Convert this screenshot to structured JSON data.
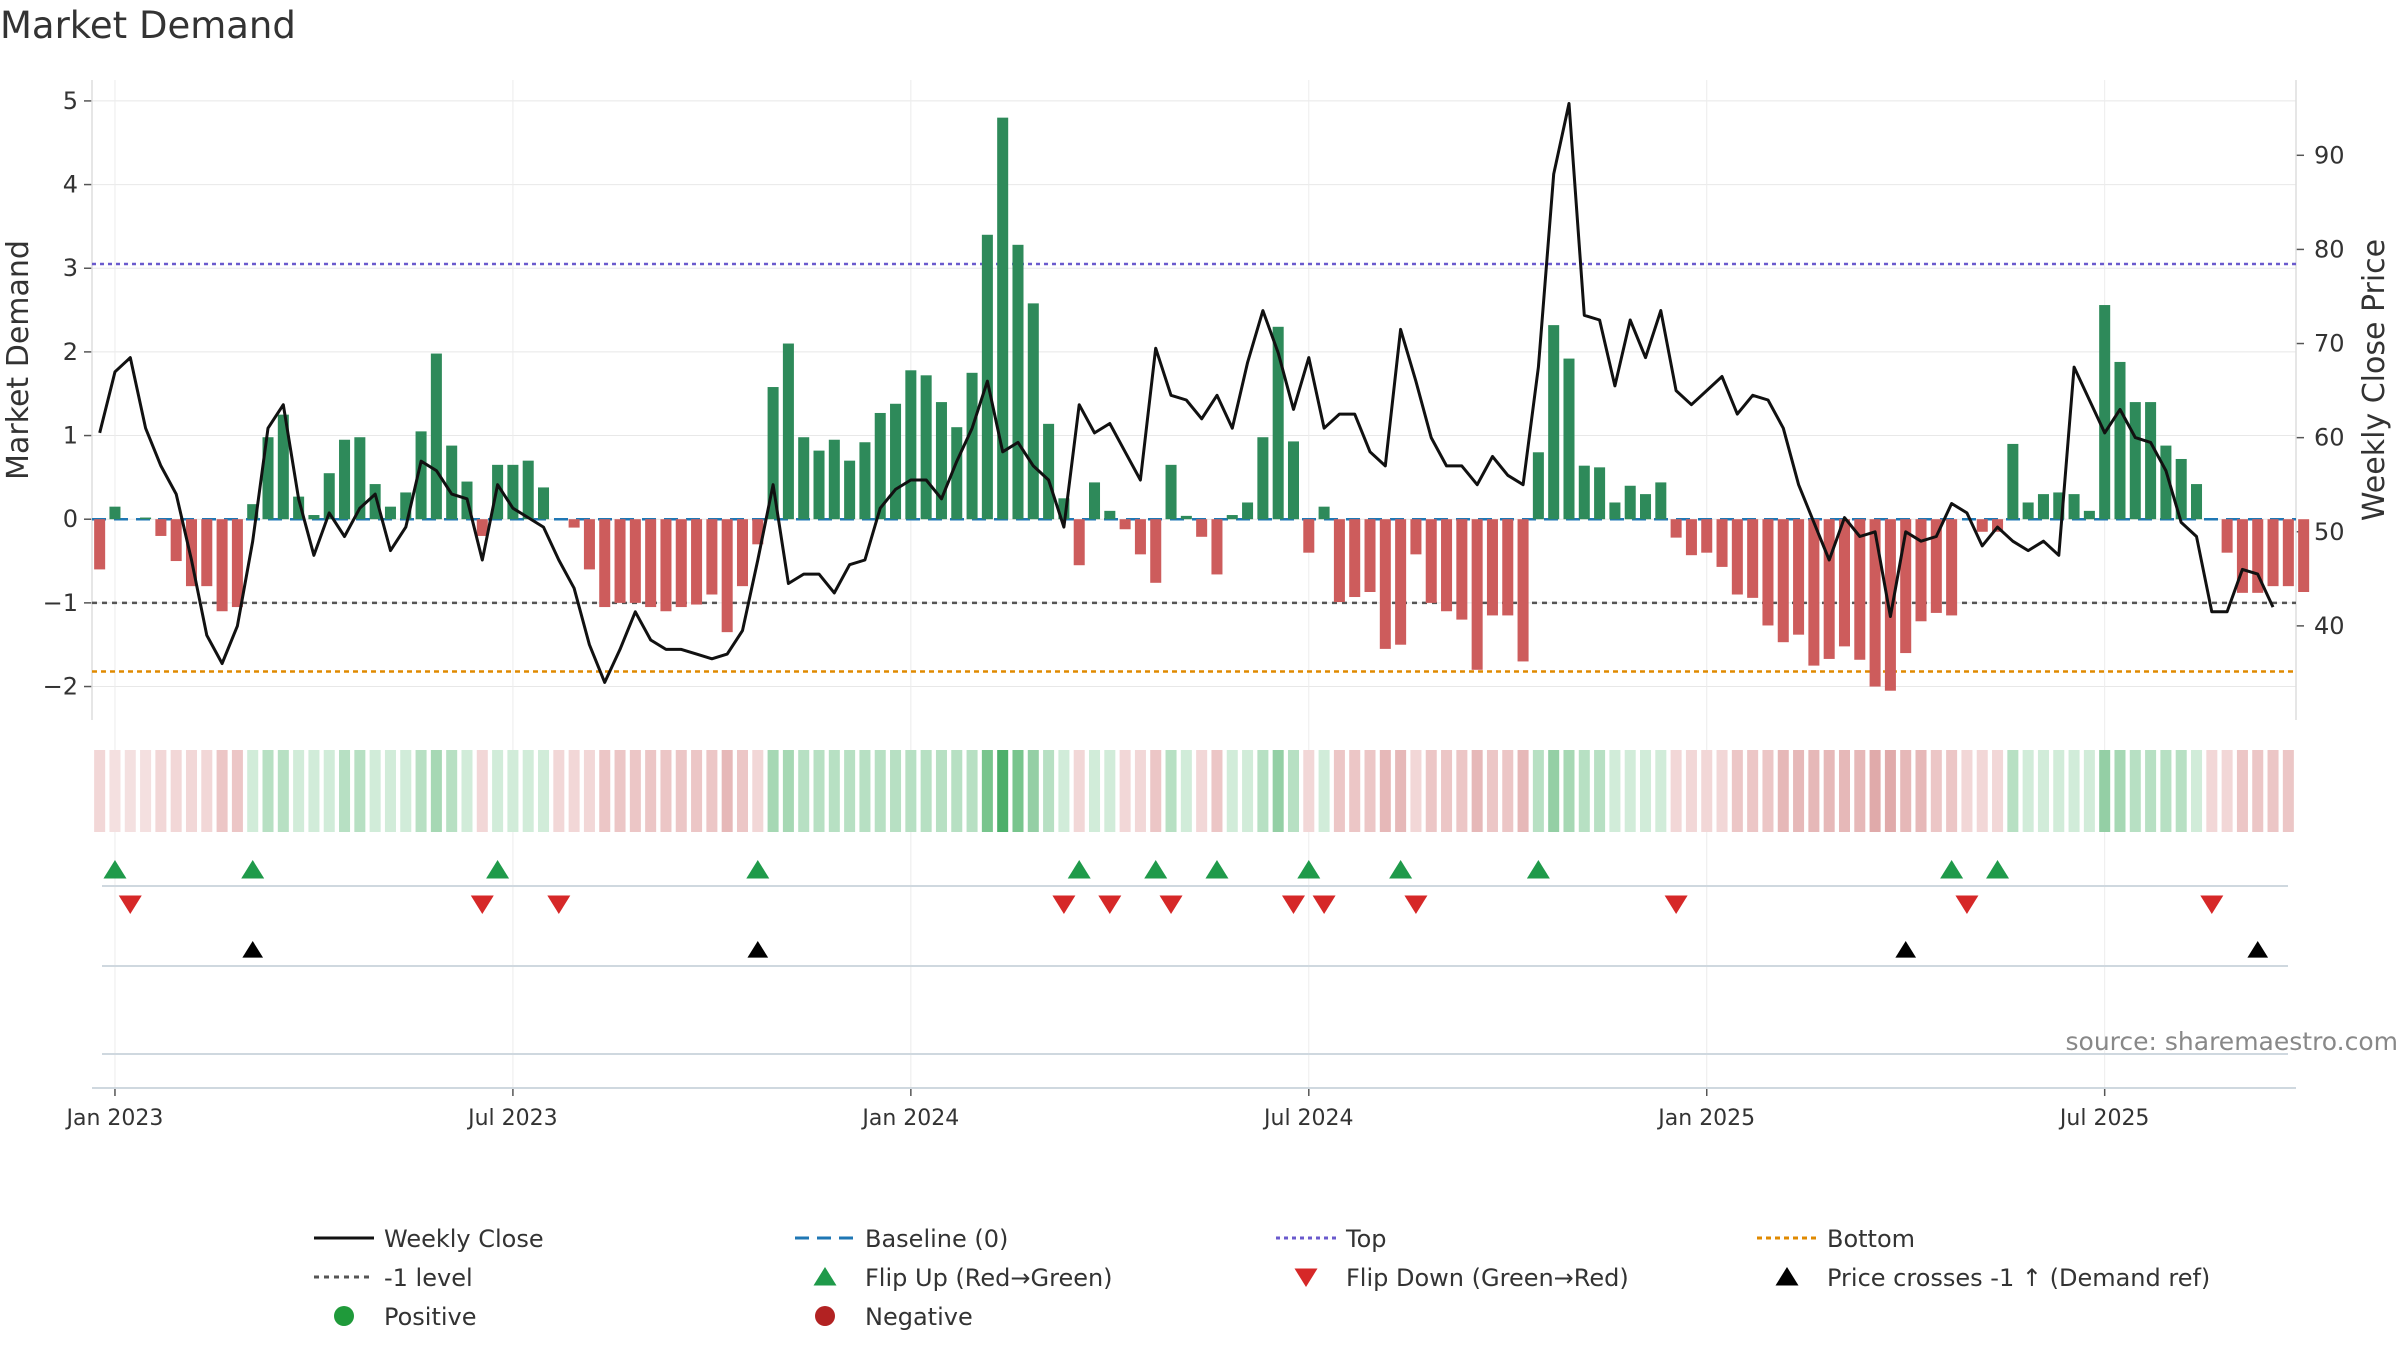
{
  "chart_data": {
    "type": "bar+line",
    "title": "Market Demand",
    "ylabel_left": "Market Demand",
    "ylabel_right": "Weekly Close Price",
    "left_ylim": [
      -2.4,
      5.25
    ],
    "right_ylim": [
      30,
      98
    ],
    "left_yticks": [
      -2,
      -1,
      0,
      1,
      2,
      3,
      4,
      5
    ],
    "left_ytick_labels": [
      "−2",
      "−1",
      "0",
      "1",
      "2",
      "3",
      "4",
      "5"
    ],
    "right_yticks": [
      40,
      50,
      60,
      70,
      80,
      90
    ],
    "right_ytick_labels": [
      "40",
      "50",
      "60",
      "70",
      "80",
      "90"
    ],
    "x_ticks": [
      {
        "index": 1,
        "label": "Jan 2023"
      },
      {
        "index": 27,
        "label": "Jul 2023"
      },
      {
        "index": 53,
        "label": "Jan 2024"
      },
      {
        "index": 79,
        "label": "Jul 2024"
      },
      {
        "index": 105,
        "label": "Jan 2025"
      },
      {
        "index": 131,
        "label": "Jul 2025"
      }
    ],
    "n_weeks": 144,
    "top_level": 3.05,
    "bottom_level": -1.82,
    "minus1_level": -1,
    "demand": [
      -0.6,
      0.15,
      0,
      0.02,
      -0.2,
      -0.5,
      -0.8,
      -0.8,
      -1.1,
      -1.05,
      0.18,
      0.98,
      1.25,
      0.27,
      0.05,
      0.55,
      0.95,
      0.98,
      0.42,
      0.15,
      0.32,
      1.05,
      1.98,
      0.88,
      0.45,
      -0.2,
      0.65,
      0.65,
      0.7,
      0.38,
      0,
      -0.1,
      -0.6,
      -1.05,
      -1,
      -1,
      -1.05,
      -1.1,
      -1.05,
      -1.02,
      -0.9,
      -1.35,
      -0.8,
      -0.3,
      1.58,
      2.1,
      0.98,
      0.82,
      0.95,
      0.7,
      0.92,
      1.27,
      1.38,
      1.78,
      1.72,
      1.4,
      1.1,
      1.75,
      3.4,
      4.8,
      3.28,
      2.58,
      1.14,
      0.25,
      -0.55,
      0.44,
      0.1,
      -0.12,
      -0.42,
      -0.76,
      0.65,
      0.04,
      -0.21,
      -0.66,
      0.05,
      0.2,
      0.98,
      2.3,
      0.93,
      -0.4,
      0.15,
      -0.99,
      -0.93,
      -0.87,
      -1.55,
      -1.5,
      -0.42,
      -1.0,
      -1.1,
      -1.2,
      -1.8,
      -1.15,
      -1.15,
      -1.7,
      0.8,
      2.32,
      1.92,
      0.64,
      0.62,
      0.2,
      0.4,
      0.3,
      0.44,
      -0.22,
      -0.43,
      -0.4,
      -0.57,
      -0.9,
      -0.94,
      -1.27,
      -1.47,
      -1.38,
      -1.75,
      -1.67,
      -1.52,
      -1.68,
      -2.0,
      -2.05,
      -1.6,
      -1.22,
      -1.12,
      -1.15,
      0,
      -0.15,
      -0.15,
      0.9,
      0.2,
      0.3,
      0.32,
      0.3,
      0.1,
      2.56,
      1.88,
      1.4,
      1.4,
      0.88,
      0.72,
      0.42,
      0,
      -0.4,
      -0.88,
      -0.88,
      -0.8,
      -0.8,
      -0.87
    ],
    "weekly_close": [
      60.5,
      67,
      68.5,
      61,
      57,
      54,
      47,
      39,
      36,
      40,
      49,
      61,
      63.5,
      53.5,
      47.5,
      52,
      49.5,
      52.5,
      54,
      48,
      50.5,
      57.5,
      56.5,
      54,
      53.5,
      47,
      55,
      52.5,
      51.5,
      50.5,
      47,
      44,
      38,
      34,
      37.5,
      41.5,
      38.5,
      37.5,
      37.5,
      37,
      36.5,
      37,
      39.5,
      47,
      55,
      44.5,
      45.5,
      45.5,
      43.5,
      46.5,
      47,
      52.5,
      54.5,
      55.5,
      55.5,
      53.5,
      57.5,
      61,
      66,
      58.5,
      59.5,
      57,
      55.5,
      50.5,
      63.5,
      60.5,
      61.5,
      58.5,
      55.5,
      69.5,
      64.5,
      64,
      62,
      64.5,
      61,
      68,
      73.5,
      69,
      63,
      68.5,
      61,
      62.5,
      62.5,
      58.5,
      57,
      71.5,
      66,
      60,
      57,
      57,
      55,
      58,
      56,
      55,
      67.5,
      88,
      95.5,
      73,
      72.5,
      65.5,
      72.5,
      68.5,
      73.5,
      65,
      63.5,
      65,
      66.5,
      62.5,
      64.5,
      64,
      61,
      55,
      51,
      47,
      51.5,
      49.5,
      50,
      41,
      50,
      49,
      49.5,
      53,
      52,
      48.5,
      50.5,
      49,
      48,
      49,
      47.5,
      67.5,
      64,
      60.5,
      63,
      60,
      59.5,
      56.5,
      51,
      49.5,
      41.5,
      41.5,
      46,
      45.5,
      42
    ],
    "strip_colors": [
      "#f2d7d7",
      "#f4e0e0",
      "#f4e0e0",
      "#f4e0e0",
      "#f2d7d7",
      "#f2d7d7",
      "#f2d7d7",
      "#f2d7d7",
      "#ecc6c6",
      "#ecc6c6",
      "#d1ecd9",
      "#b7e0c3",
      "#b7e0c3",
      "#d1ecd9",
      "#d1ecd9",
      "#d1ecd9",
      "#b7e0c3",
      "#b7e0c3",
      "#d1ecd9",
      "#d1ecd9",
      "#d1ecd9",
      "#b7e0c3",
      "#a6d8b4",
      "#b7e0c3",
      "#d1ecd9",
      "#f2d7d7",
      "#d1ecd9",
      "#d1ecd9",
      "#d1ecd9",
      "#d1ecd9",
      "#f2d7d7",
      "#f2d7d7",
      "#f2d7d7",
      "#ecc6c6",
      "#ecc6c6",
      "#ecc6c6",
      "#ecc6c6",
      "#ecc6c6",
      "#ecc6c6",
      "#ecc6c6",
      "#ecc6c6",
      "#e6b8b8",
      "#ecc6c6",
      "#f2d7d7",
      "#a6d8b4",
      "#a6d8b4",
      "#b7e0c3",
      "#b7e0c3",
      "#b7e0c3",
      "#b7e0c3",
      "#b7e0c3",
      "#b7e0c3",
      "#b7e0c3",
      "#b7e0c3",
      "#b7e0c3",
      "#b7e0c3",
      "#b7e0c3",
      "#b7e0c3",
      "#78c58d",
      "#4caf6a",
      "#78c58d",
      "#94cfa5",
      "#b7e0c3",
      "#d1ecd9",
      "#f2d7d7",
      "#d1ecd9",
      "#d1ecd9",
      "#f2d7d7",
      "#f2d7d7",
      "#ecc6c6",
      "#b7e0c3",
      "#d1ecd9",
      "#f2d7d7",
      "#ecc6c6",
      "#d1ecd9",
      "#d1ecd9",
      "#b7e0c3",
      "#94cfa5",
      "#b7e0c3",
      "#f2d7d7",
      "#d1ecd9",
      "#ecc6c6",
      "#ecc6c6",
      "#ecc6c6",
      "#e6b8b8",
      "#e6b8b8",
      "#f2d7d7",
      "#ecc6c6",
      "#ecc6c6",
      "#ecc6c6",
      "#e6b8b8",
      "#ecc6c6",
      "#ecc6c6",
      "#e6b8b8",
      "#b7e0c3",
      "#94cfa5",
      "#a6d8b4",
      "#b7e0c3",
      "#b7e0c3",
      "#d1ecd9",
      "#d1ecd9",
      "#d1ecd9",
      "#d1ecd9",
      "#f2d7d7",
      "#f2d7d7",
      "#f2d7d7",
      "#f2d7d7",
      "#ecc6c6",
      "#ecc6c6",
      "#ecc6c6",
      "#e6b8b8",
      "#e6b8b8",
      "#e6b8b8",
      "#e6b8b8",
      "#e6b8b8",
      "#e6b8b8",
      "#e0aaaa",
      "#e0aaaa",
      "#e6b8b8",
      "#e6b8b8",
      "#ecc6c6",
      "#ecc6c6",
      "#f2d7d7",
      "#f2d7d7",
      "#f2d7d7",
      "#b7e0c3",
      "#d1ecd9",
      "#d1ecd9",
      "#d1ecd9",
      "#d1ecd9",
      "#d1ecd9",
      "#94cfa5",
      "#a6d8b4",
      "#b7e0c3",
      "#b7e0c3",
      "#b7e0c3",
      "#b7e0c3",
      "#d1ecd9",
      "#f2d7d7",
      "#f2d7d7",
      "#ecc6c6",
      "#ecc6c6",
      "#ecc6c6",
      "#ecc6c6"
    ],
    "flip_up_weeks": [
      1,
      10,
      26,
      43,
      64,
      69,
      73,
      79,
      85,
      94,
      121,
      124
    ],
    "flip_down_weeks": [
      2,
      25,
      30,
      63,
      66,
      70,
      78,
      80,
      86,
      103,
      122,
      138
    ],
    "price_cross_weeks": [
      10,
      43,
      118,
      141
    ],
    "legend": [
      {
        "key": "weekly_close",
        "label": "Weekly Close"
      },
      {
        "key": "baseline",
        "label": "Baseline (0)"
      },
      {
        "key": "top",
        "label": "Top"
      },
      {
        "key": "bottom",
        "label": "Bottom"
      },
      {
        "key": "minus1",
        "label": "-1 level"
      },
      {
        "key": "flip_up",
        "label": "Flip Up (Red→Green)"
      },
      {
        "key": "flip_down",
        "label": "Flip Down (Green→Red)"
      },
      {
        "key": "price_cross",
        "label": "Price crosses -1 ↑ (Demand ref)"
      },
      {
        "key": "positive",
        "label": "Positive"
      },
      {
        "key": "negative",
        "label": "Negative"
      }
    ]
  },
  "source": "source: sharemaestro.com",
  "colors": {
    "positive_bar": "#2e8a5a",
    "negative_bar": "#cd5c5c",
    "close_line": "#111111",
    "baseline": "#1f77b4",
    "top": "#6a5acd",
    "bottom": "#e08a00",
    "minus1": "#555555",
    "flip_up": "#1f9a4a",
    "flip_down": "#d62828",
    "price_cross": "#000000",
    "positive_dot": "#1f9a3a",
    "negative_dot": "#b22222"
  }
}
